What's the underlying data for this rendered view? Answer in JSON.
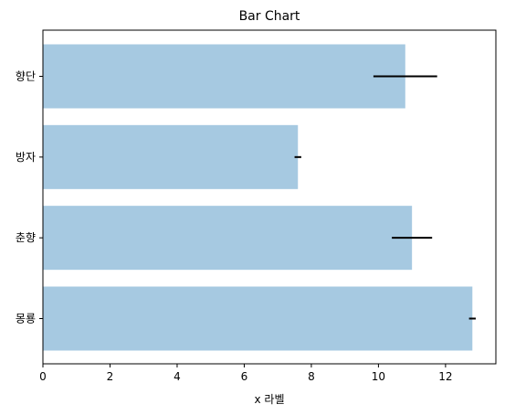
{
  "chart_data": {
    "type": "bar",
    "orientation": "horizontal",
    "title": "Bar Chart",
    "xlabel": "x 라벨",
    "ylabel": "",
    "categories": [
      "몽룡",
      "춘향",
      "방자",
      "향단"
    ],
    "values": [
      12.8,
      11.0,
      7.6,
      10.8
    ],
    "errors": [
      0.1,
      0.6,
      0.1,
      0.95
    ],
    "xlim": [
      0,
      13.5
    ],
    "xticks": [
      0,
      2,
      4,
      6,
      8,
      10,
      12
    ],
    "bar_color": "#a6c9e1",
    "error_color": "#000000",
    "grid": false,
    "legend": "none"
  }
}
